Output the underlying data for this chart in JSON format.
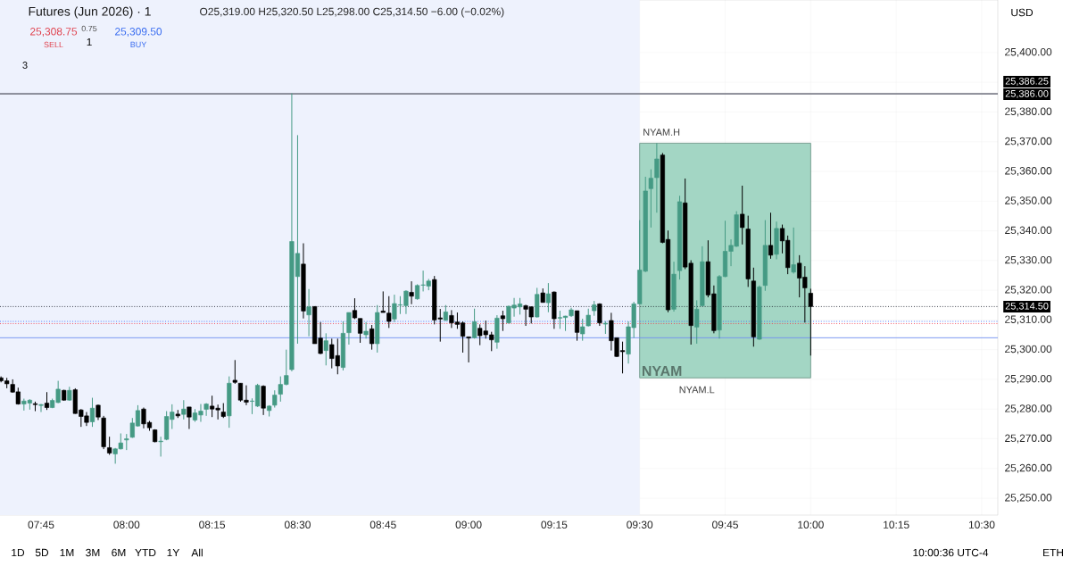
{
  "chart_data": {
    "type": "candlestick",
    "title": "Futures (Jun 2026) · 1",
    "subtitle": "O25,319.00 H25,320.50 L25,298.00 C25,314.50 −6.00 (−0.02%)",
    "x": [
      7.633,
      7.65,
      7.667,
      7.683,
      7.7,
      7.717,
      7.733,
      7.75,
      7.767,
      7.783,
      7.8,
      7.817,
      7.833,
      7.85,
      7.867,
      7.883,
      7.9,
      7.917,
      7.933,
      7.95,
      7.967,
      7.983,
      8,
      8.017,
      8.033,
      8.05,
      8.067,
      8.083,
      8.1,
      8.117,
      8.133,
      8.15,
      8.167,
      8.183,
      8.2,
      8.217,
      8.233,
      8.25,
      8.267,
      8.283,
      8.3,
      8.317,
      8.333,
      8.35,
      8.367,
      8.383,
      8.4,
      8.417,
      8.433,
      8.45,
      8.467,
      8.483,
      8.5,
      8.517,
      8.533,
      8.55,
      8.567,
      8.583,
      8.6,
      8.617,
      8.633,
      8.65,
      8.667,
      8.683,
      8.7,
      8.717,
      8.733,
      8.75,
      8.767,
      8.783,
      8.8,
      8.817,
      8.833,
      8.85,
      8.867,
      8.883,
      8.9,
      8.917,
      8.933,
      8.95,
      8.967,
      8.983,
      9,
      9.017,
      9.033,
      9.05,
      9.067,
      9.083,
      9.1,
      9.117,
      9.133,
      9.15,
      9.167,
      9.183,
      9.2,
      9.217,
      9.233,
      9.25,
      9.267,
      9.283,
      9.3,
      9.317,
      9.333,
      9.35,
      9.367,
      9.383,
      9.4,
      9.417,
      9.433,
      9.45,
      9.467,
      9.483,
      9.5,
      9.517,
      9.533,
      9.55,
      9.567,
      9.583,
      9.6,
      9.617,
      9.633,
      9.65,
      9.667,
      9.683,
      9.7,
      9.717,
      9.733,
      9.75,
      9.767,
      9.783,
      9.8,
      9.817,
      9.833,
      9.85,
      9.867,
      9.883,
      9.9,
      9.917,
      9.933,
      9.95,
      9.967,
      9.983,
      10
    ],
    "ohlc": [
      [
        25290.5,
        25291,
        25289,
        25289.5
      ],
      [
        25289.5,
        25290.5,
        25287,
        25288.5
      ],
      [
        25288.3,
        25290,
        25285.5,
        25285.7
      ],
      [
        25285.8,
        25287.2,
        25281.5,
        25281.7
      ],
      [
        25281.7,
        25283.5,
        25279.5,
        25282.7
      ],
      [
        25282,
        25283.3,
        25279.8,
        25283
      ],
      [
        25281.8,
        25282.5,
        25279.3,
        25281.5
      ],
      [
        25281.2,
        25281.7,
        25279,
        25281.5
      ],
      [
        25282,
        25285.7,
        25279.7,
        25280.5
      ],
      [
        25280.5,
        25283.5,
        25280.3,
        25282.9
      ],
      [
        25282.2,
        25289.5,
        25282,
        25286.7
      ],
      [
        25286.3,
        25286.5,
        25282.8,
        25283
      ],
      [
        25283,
        25287.5,
        25282.8,
        25286.3
      ],
      [
        25286.5,
        25287,
        25278.4,
        25278.5
      ],
      [
        25279.7,
        25280,
        25274,
        25277.5
      ],
      [
        25277.7,
        25279,
        25274.3,
        25275.5
      ],
      [
        25275.7,
        25283.8,
        25274,
        25280.3
      ],
      [
        25281.3,
        25281.5,
        25276.3,
        25277.3
      ],
      [
        25277,
        25277.7,
        25266.5,
        25267.3
      ],
      [
        25267,
        25270.7,
        25264.6,
        25265.2
      ],
      [
        25264.9,
        25266.9,
        25261.6,
        25266.6
      ],
      [
        25266.6,
        25271.8,
        25266.4,
        25268.6
      ],
      [
        25269.6,
        25271.6,
        25266.2,
        25270
      ],
      [
        25270.5,
        25277,
        25270.3,
        25275.3
      ],
      [
        25274.3,
        25281.3,
        25274.1,
        25279.5
      ],
      [
        25280,
        25280.5,
        25273.5,
        25275
      ],
      [
        25275.5,
        25276,
        25272.7,
        25273.7
      ],
      [
        25273,
        25273.2,
        25268.8,
        25269
      ],
      [
        25269,
        25270.7,
        25264,
        25269.2
      ],
      [
        25269.8,
        25279.3,
        25269.5,
        25277.5
      ],
      [
        25276.5,
        25281.6,
        25273.3,
        25279
      ],
      [
        25278.3,
        25279.7,
        25277,
        25277.7
      ],
      [
        25278.2,
        25283,
        25276.5,
        25280
      ],
      [
        25280.7,
        25280.7,
        25273.3,
        25277.3
      ],
      [
        25276.3,
        25280,
        25275.7,
        25278.7
      ],
      [
        25278,
        25281.7,
        25275.7,
        25279.3
      ],
      [
        25279.9,
        25282,
        25277.7,
        25281.7
      ],
      [
        25281,
        25284.5,
        25277.3,
        25280
      ],
      [
        25280.3,
        25281.5,
        25276.5,
        25279.7
      ],
      [
        25279,
        25282,
        25277,
        25277.5
      ],
      [
        25277.7,
        25291,
        25273.7,
        25288.7
      ],
      [
        25289.7,
        25296.5,
        25288.5,
        25289
      ],
      [
        25288.7,
        25288.7,
        25282.5,
        25283
      ],
      [
        25283,
        25288,
        25281.3,
        25282.3
      ],
      [
        25282.6,
        25283.6,
        25278.3,
        25282.7
      ],
      [
        25281,
        25288.5,
        25280.7,
        25288
      ],
      [
        25287.7,
        25288,
        25278,
        25280.3
      ],
      [
        25279.5,
        25281.3,
        25277.5,
        25281
      ],
      [
        25281.3,
        25286.3,
        25280.5,
        25284.7
      ],
      [
        25285,
        25291,
        25282.5,
        25288.3
      ],
      [
        25288.3,
        25300,
        25288,
        25291.3
      ],
      [
        25293.3,
        25386.25,
        25292.7,
        25336.4
      ],
      [
        25324.6,
        25372.2,
        25302,
        25332.4
      ],
      [
        25328.8,
        25335.8,
        25310.5,
        25313
      ],
      [
        25311.7,
        25320.4,
        25304.5,
        25314.4
      ],
      [
        25314.5,
        25314.6,
        25302,
        25302
      ],
      [
        25303.9,
        25309.3,
        25298.5,
        25298.7
      ],
      [
        25299.7,
        25305.5,
        25294.7,
        25303
      ],
      [
        25301.7,
        25303.7,
        25293.7,
        25297
      ],
      [
        25298,
        25303.7,
        25291.7,
        25294.5
      ],
      [
        25294,
        25309.5,
        25293,
        25305.5
      ],
      [
        25305.7,
        25312.5,
        25301.7,
        25312.5
      ],
      [
        25313.2,
        25317.3,
        25310.3,
        25310.7
      ],
      [
        25310.5,
        25310.5,
        25302.3,
        25305.5
      ],
      [
        25305,
        25309.3,
        25303.7,
        25306.2
      ],
      [
        25307,
        25308.3,
        25300,
        25302
      ],
      [
        25302,
        25315,
        25299,
        25312.5
      ],
      [
        25313,
        25319.6,
        25312.5,
        25312.5
      ],
      [
        25312.3,
        25318,
        25307.3,
        25309.5
      ],
      [
        25310.3,
        25318.5,
        25309.3,
        25315.5
      ],
      [
        25315,
        25318,
        25312,
        25315.1
      ],
      [
        25314.8,
        25320,
        25312,
        25319.7
      ],
      [
        25319.3,
        25323,
        25315.3,
        25318
      ],
      [
        25317.1,
        25322,
        25316.8,
        25321.6
      ],
      [
        25321.7,
        25326.6,
        25319.6,
        25321.8
      ],
      [
        25321.4,
        25323.8,
        25320,
        25323.1
      ],
      [
        25323.6,
        25324.8,
        25308.5,
        25310
      ],
      [
        25310.7,
        25313.7,
        25302.7,
        25310.3
      ],
      [
        25309.9,
        25315,
        25309.7,
        25312.7
      ],
      [
        25311.5,
        25313.3,
        25307.3,
        25309
      ],
      [
        25309.3,
        25312.5,
        25307,
        25308.5
      ],
      [
        25309,
        25309.5,
        25299,
        25304.5
      ],
      [
        25304.3,
        25304.3,
        25295.7,
        25303.9
      ],
      [
        25304,
        25313.8,
        25303.7,
        25309.4
      ],
      [
        25307.2,
        25308.5,
        25301.5,
        25304.7
      ],
      [
        25306.3,
        25309.8,
        25303.7,
        25305
      ],
      [
        25305,
        25306,
        25299.5,
        25303.3
      ],
      [
        25302.5,
        25311.6,
        25300.3,
        25310.6
      ],
      [
        25311.4,
        25313.1,
        25306.3,
        25310.4
      ],
      [
        25309,
        25314.8,
        25308.8,
        25314.6
      ],
      [
        25314,
        25317.4,
        25311.1,
        25315
      ],
      [
        25314.4,
        25317.4,
        25311.8,
        25315.4
      ],
      [
        25314.8,
        25315.1,
        25308,
        25313.6
      ],
      [
        25314.4,
        25314.6,
        25308.8,
        25311
      ],
      [
        25311,
        25320.8,
        25310.8,
        25318.6
      ],
      [
        25319.1,
        25320.6,
        25315.8,
        25315.9
      ],
      [
        25315.8,
        25322.4,
        25312.6,
        25318.8
      ],
      [
        25319.4,
        25319.6,
        25307,
        25310.4
      ],
      [
        25310.6,
        25313.1,
        25307,
        25310.8
      ],
      [
        25310.8,
        25311.4,
        25306.3,
        25311.3
      ],
      [
        25311.4,
        25314.1,
        25311,
        25313.4
      ],
      [
        25313.1,
        25313.1,
        25303,
        25305.8
      ],
      [
        25305.3,
        25310.4,
        25303,
        25307.7
      ],
      [
        25308,
        25313.8,
        25307.8,
        25311.6
      ],
      [
        25313.1,
        25316.4,
        25311.4,
        25315.1
      ],
      [
        25315.4,
        25315.6,
        25308,
        25309
      ],
      [
        25308.6,
        25309.6,
        25305.3,
        25308.9
      ],
      [
        25309.8,
        25312.4,
        25299.7,
        25303
      ],
      [
        25304,
        25304,
        25297.5,
        25297.7
      ],
      [
        25299.7,
        25302.7,
        25292,
        25299.3
      ],
      [
        25298.5,
        25309.5,
        25295.3,
        25307.7
      ],
      [
        25307.4,
        25316.1,
        25304,
        25315.4
      ],
      [
        25315.4,
        25343.6,
        25315.4,
        25326.8
      ],
      [
        25326.4,
        25358.2,
        25326.1,
        25353.4
      ],
      [
        25354.2,
        25360.7,
        25341.1,
        25357.7
      ],
      [
        25357.9,
        25369.5,
        25346.1,
        25364.2
      ],
      [
        25365.5,
        25366.2,
        25335.8,
        25336.1
      ],
      [
        25337.1,
        25340.1,
        25312.6,
        25313.4
      ],
      [
        25313.6,
        25329.6,
        25312.8,
        25325.4
      ],
      [
        25326.6,
        25351.8,
        25323.6,
        25349.8
      ],
      [
        25349.4,
        25357.6,
        25327.1,
        25327.8
      ],
      [
        25329.1,
        25330.1,
        25301.7,
        25308.1
      ],
      [
        25307.6,
        25316.6,
        25302,
        25313.6
      ],
      [
        25314.8,
        25334.8,
        25314.6,
        25329.6
      ],
      [
        25329.6,
        25336.8,
        25317.6,
        25318.4
      ],
      [
        25318.8,
        25321.6,
        25305.5,
        25306.4
      ],
      [
        25306.6,
        25325.1,
        25303.7,
        25324.6
      ],
      [
        25324.6,
        25343.4,
        25324.4,
        25333.1
      ],
      [
        25333.1,
        25337.1,
        25328.1,
        25335.1
      ],
      [
        25334.8,
        25346.6,
        25334.6,
        25345.4
      ],
      [
        25345.6,
        25355.2,
        25335.4,
        25341.1
      ],
      [
        25340.6,
        25345.1,
        25321.1,
        25323.8
      ],
      [
        25323.1,
        25327.6,
        25301,
        25304.3
      ],
      [
        25303.5,
        25321.6,
        25303.3,
        25321.1
      ],
      [
        25321.6,
        25343.6,
        25319.8,
        25335.1
      ],
      [
        25335.1,
        25346.1,
        25330.6,
        25331.8
      ],
      [
        25332.1,
        25343.1,
        25330.4,
        25340.8
      ],
      [
        25340.8,
        25342.1,
        25332.4,
        25336.6
      ],
      [
        25336.8,
        25338.4,
        25325.4,
        25327.6
      ],
      [
        25326.1,
        25341.1,
        25325.6,
        25328.6
      ],
      [
        25329.1,
        25331.8,
        25317.6,
        25324.1
      ],
      [
        25324.4,
        25328.1,
        25309.1,
        25320.8
      ],
      [
        25319,
        25320.5,
        25298,
        25314.5
      ]
    ],
    "xlim": [
      7.63,
      10.547
    ],
    "ylim": [
      25244.3,
      25417.7
    ],
    "xticks": [
      {
        "value": 7.75,
        "label": "07:45"
      },
      {
        "value": 8,
        "label": "08:00"
      },
      {
        "value": 8.25,
        "label": "08:15"
      },
      {
        "value": 8.5,
        "label": "08:30"
      },
      {
        "value": 8.75,
        "label": "08:45"
      },
      {
        "value": 9,
        "label": "09:00"
      },
      {
        "value": 9.25,
        "label": "09:15"
      },
      {
        "value": 9.5,
        "label": "09:30"
      },
      {
        "value": 9.75,
        "label": "09:45"
      },
      {
        "value": 10,
        "label": "10:00"
      },
      {
        "value": 10.25,
        "label": "10:15"
      },
      {
        "value": 10.5,
        "label": "10:30"
      }
    ],
    "yticks": [
      {
        "value": 25250,
        "label": "25,250.00"
      },
      {
        "value": 25260,
        "label": "25,260.00"
      },
      {
        "value": 25270,
        "label": "25,270.00"
      },
      {
        "value": 25280,
        "label": "25,280.00"
      },
      {
        "value": 25290,
        "label": "25,290.00"
      },
      {
        "value": 25300,
        "label": "25,300.00"
      },
      {
        "value": 25310,
        "label": "25,310.00"
      },
      {
        "value": 25320,
        "label": "25,320.00"
      },
      {
        "value": 25330,
        "label": "25,330.00"
      },
      {
        "value": 25340,
        "label": "25,340.00"
      },
      {
        "value": 25350,
        "label": "25,350.00"
      },
      {
        "value": 25360,
        "label": "25,360.00"
      },
      {
        "value": 25370,
        "label": "25,370.00"
      },
      {
        "value": 25380,
        "label": "25,380.00"
      },
      {
        "value": 25390,
        "label": null
      },
      {
        "value": 25400,
        "label": "25,400.00"
      }
    ],
    "grid": true,
    "bands": [
      {
        "axis": "x",
        "from": 7.63,
        "to": 9.5,
        "color": "#eef2fd"
      },
      {
        "axis": "x",
        "from": 9.5,
        "to": 10,
        "label": "NYAM",
        "color": "#a3d6c4"
      }
    ],
    "ref_lines": [
      {
        "axis": "y",
        "value": 25386,
        "label": "25,386.00",
        "color": "#787b86",
        "line_style": "solid"
      },
      {
        "axis": "y",
        "value": 25386.25,
        "label": "25,386.25",
        "color": "#787b86",
        "line_style": "solid"
      },
      {
        "axis": "y",
        "value": 25314.5,
        "label": "25,314.50",
        "color": "#131722",
        "line_style": "dotted"
      },
      {
        "axis": "y",
        "value": 25308.75,
        "color": "#f23645",
        "line_style": "dotted"
      },
      {
        "axis": "y",
        "value": 25309.5,
        "color": "#2962ff",
        "line_style": "dotted"
      },
      {
        "axis": "y",
        "value": 25304,
        "color": "#6f8ff0",
        "line_style": "solid"
      }
    ],
    "annotations": [
      {
        "text": "NYAM.H",
        "x": 9.5,
        "y": 25369.5
      },
      {
        "text": "NYAM.L",
        "x": 9.667,
        "y": 25290.5
      },
      "25,308.75",
      "SELL",
      "0.75",
      "1",
      "25,309.50",
      "BUY",
      "3",
      "USD",
      "1D",
      "5D",
      "1M",
      "3M",
      "6M",
      "YTD",
      "1Y",
      "All",
      "10:00:36 UTC-4",
      "ETH"
    ]
  }
}
